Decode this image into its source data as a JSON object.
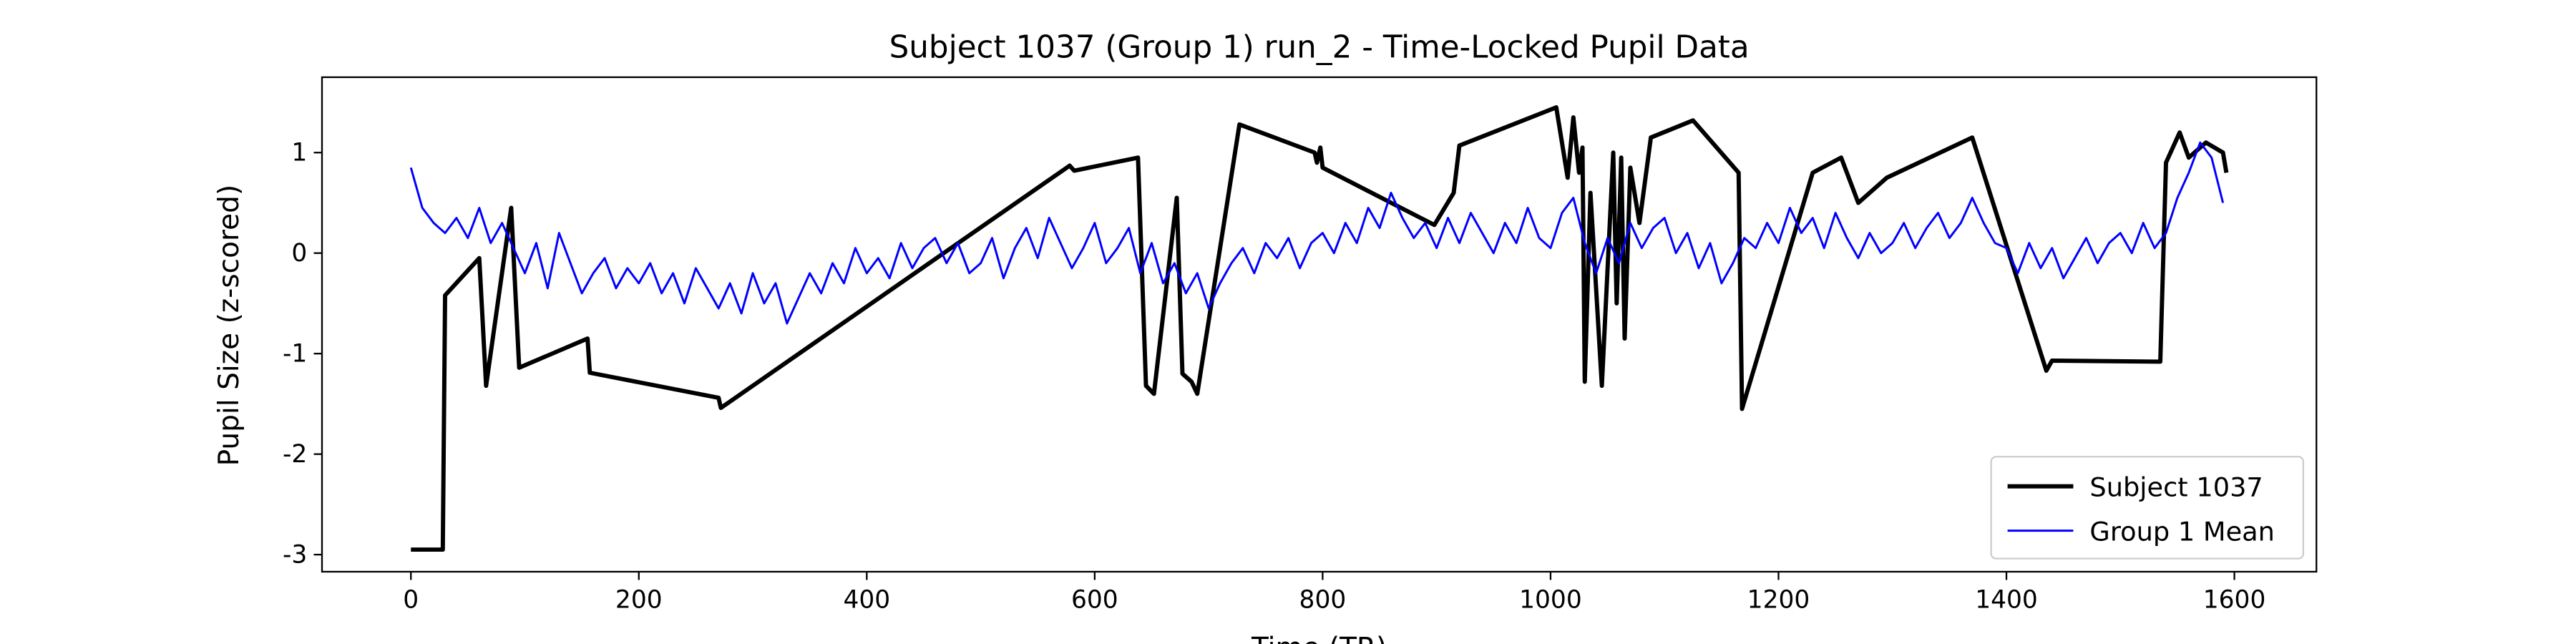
{
  "chart_data": {
    "type": "line",
    "title": "Subject 1037 (Group 1) run_2 - Time-Locked Pupil Data",
    "xlabel": "Time (TR)",
    "ylabel": "Pupil Size (z-scored)",
    "xlim": [
      -78,
      1672
    ],
    "ylim": [
      -3.17,
      1.75
    ],
    "xticks": [
      0,
      200,
      400,
      600,
      800,
      1000,
      1200,
      1400,
      1600
    ],
    "yticks": [
      -3,
      -2,
      -1,
      0,
      1
    ],
    "legend": "lower right",
    "series": [
      {
        "name": "Subject 1037",
        "color": "#000000",
        "x": [
          0,
          28,
          30,
          60,
          66,
          88,
          95,
          155,
          157,
          270,
          272,
          578,
          582,
          638,
          645,
          652,
          672,
          677,
          685,
          690,
          727,
          793,
          795,
          798,
          800,
          898,
          915,
          920,
          1005,
          1015,
          1020,
          1025,
          1028,
          1030,
          1035,
          1045,
          1055,
          1058,
          1062,
          1065,
          1070,
          1078,
          1088,
          1125,
          1165,
          1168,
          1230,
          1255,
          1270,
          1295,
          1370,
          1435,
          1440,
          1535,
          1540,
          1552,
          1560,
          1575,
          1590,
          1593
        ],
        "values": [
          -2.95,
          -2.95,
          -0.42,
          -0.05,
          -1.32,
          0.45,
          -1.14,
          -0.85,
          -1.19,
          -1.44,
          -1.54,
          0.87,
          0.82,
          0.95,
          -1.32,
          -1.4,
          0.55,
          -1.2,
          -1.28,
          -1.4,
          1.28,
          1.0,
          0.9,
          1.05,
          0.85,
          0.28,
          0.6,
          1.07,
          1.45,
          0.75,
          1.35,
          0.8,
          1.05,
          -1.28,
          0.6,
          -1.32,
          1.0,
          -0.5,
          0.95,
          -0.85,
          0.85,
          0.3,
          1.15,
          1.32,
          0.8,
          -1.55,
          0.8,
          0.95,
          0.5,
          0.75,
          1.15,
          -1.17,
          -1.07,
          -1.08,
          0.9,
          1.2,
          0.95,
          1.1,
          1.0,
          0.8
        ]
      },
      {
        "name": "Group 1 Mean",
        "color": "#0000ff",
        "x": [
          0,
          10,
          20,
          30,
          40,
          50,
          60,
          70,
          80,
          90,
          100,
          110,
          120,
          130,
          140,
          150,
          160,
          170,
          180,
          190,
          200,
          210,
          220,
          230,
          240,
          250,
          260,
          270,
          280,
          290,
          300,
          310,
          320,
          330,
          340,
          350,
          360,
          370,
          380,
          390,
          400,
          410,
          420,
          430,
          440,
          450,
          460,
          470,
          480,
          490,
          500,
          510,
          520,
          530,
          540,
          550,
          560,
          570,
          580,
          590,
          600,
          610,
          620,
          630,
          640,
          650,
          660,
          670,
          680,
          690,
          700,
          710,
          720,
          730,
          740,
          750,
          760,
          770,
          780,
          790,
          800,
          810,
          820,
          830,
          840,
          850,
          860,
          870,
          880,
          890,
          900,
          910,
          920,
          930,
          940,
          950,
          960,
          970,
          980,
          990,
          1000,
          1010,
          1020,
          1030,
          1040,
          1050,
          1060,
          1070,
          1080,
          1090,
          1100,
          1110,
          1120,
          1130,
          1140,
          1150,
          1160,
          1170,
          1180,
          1190,
          1200,
          1210,
          1220,
          1230,
          1240,
          1250,
          1260,
          1270,
          1280,
          1290,
          1300,
          1310,
          1320,
          1330,
          1340,
          1350,
          1360,
          1370,
          1380,
          1390,
          1400,
          1410,
          1420,
          1430,
          1440,
          1450,
          1460,
          1470,
          1480,
          1490,
          1500,
          1510,
          1520,
          1530,
          1540,
          1550,
          1560,
          1570,
          1580,
          1590
        ],
        "values": [
          0.85,
          0.45,
          0.3,
          0.2,
          0.35,
          0.15,
          0.45,
          0.1,
          0.3,
          0.05,
          -0.2,
          0.1,
          -0.35,
          0.2,
          -0.1,
          -0.4,
          -0.2,
          -0.05,
          -0.35,
          -0.15,
          -0.3,
          -0.1,
          -0.4,
          -0.2,
          -0.5,
          -0.15,
          -0.35,
          -0.55,
          -0.3,
          -0.6,
          -0.2,
          -0.5,
          -0.3,
          -0.7,
          -0.45,
          -0.2,
          -0.4,
          -0.1,
          -0.3,
          0.05,
          -0.2,
          -0.05,
          -0.25,
          0.1,
          -0.15,
          0.05,
          0.15,
          -0.1,
          0.1,
          -0.2,
          -0.1,
          0.15,
          -0.25,
          0.05,
          0.25,
          -0.05,
          0.35,
          0.1,
          -0.15,
          0.05,
          0.3,
          -0.1,
          0.05,
          0.25,
          -0.2,
          0.1,
          -0.3,
          -0.1,
          -0.4,
          -0.2,
          -0.55,
          -0.3,
          -0.1,
          0.05,
          -0.2,
          0.1,
          -0.05,
          0.15,
          -0.15,
          0.1,
          0.2,
          0,
          0.3,
          0.1,
          0.45,
          0.25,
          0.6,
          0.35,
          0.15,
          0.3,
          0.05,
          0.35,
          0.1,
          0.4,
          0.2,
          0,
          0.3,
          0.1,
          0.45,
          0.15,
          0.05,
          0.4,
          0.55,
          0.1,
          -0.2,
          0.15,
          -0.1,
          0.3,
          0.05,
          0.25,
          0.35,
          0,
          0.2,
          -0.15,
          0.1,
          -0.3,
          -0.1,
          0.15,
          0.05,
          0.3,
          0.1,
          0.45,
          0.2,
          0.35,
          0.05,
          0.4,
          0.15,
          -0.05,
          0.2,
          0,
          0.1,
          0.3,
          0.05,
          0.25,
          0.4,
          0.15,
          0.3,
          0.55,
          0.3,
          0.1,
          0.05,
          -0.2,
          0.1,
          -0.15,
          0.05,
          -0.25,
          -0.05,
          0.15,
          -0.1,
          0.1,
          0.2,
          0,
          0.3,
          0.05,
          0.2,
          0.55,
          0.8,
          1.1,
          0.95,
          0.5
        ]
      }
    ]
  }
}
